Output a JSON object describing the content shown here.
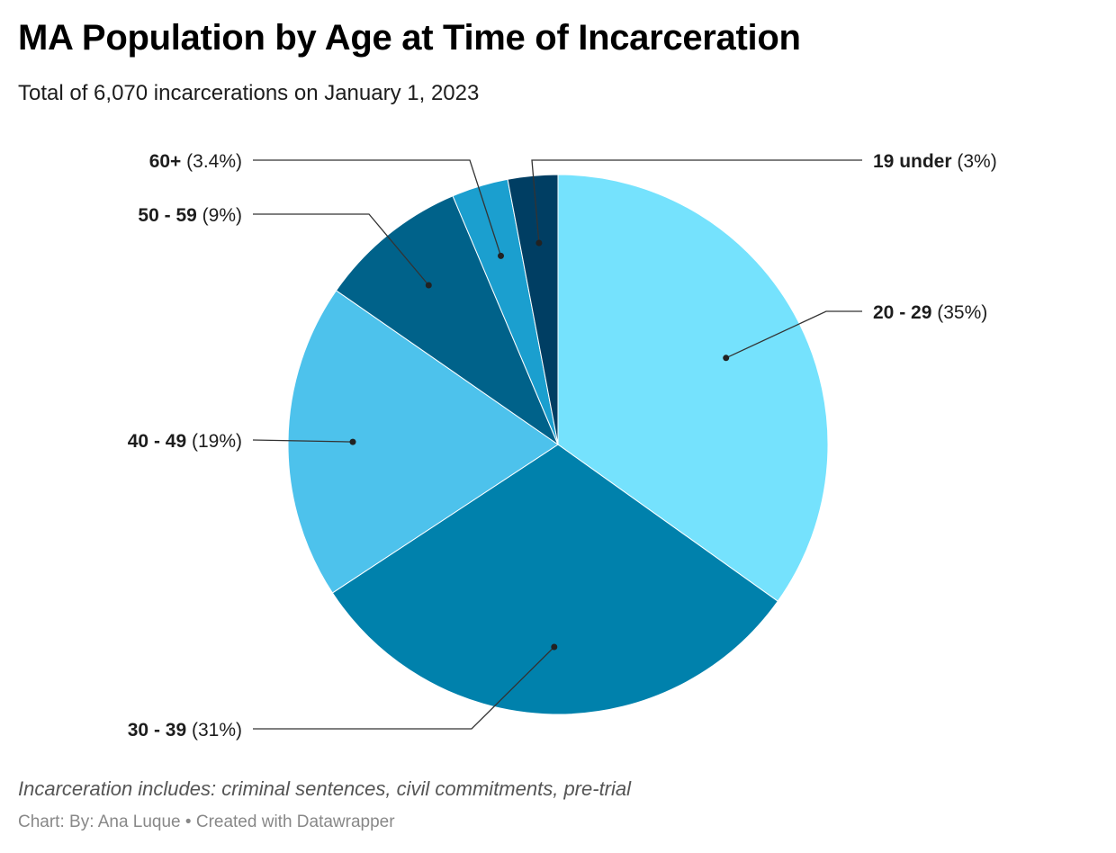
{
  "header": {
    "title": "MA Population by Age at Time of Incarceration",
    "subtitle": "Total of 6,070 incarcerations on January 1, 2023"
  },
  "footer": {
    "notes": "Incarceration includes: criminal sentences, civil commitments, pre-trial",
    "credit_label": "Chart: By: Ana Luque",
    "separator": " • ",
    "credit_tool": "Created with Datawrapper"
  },
  "chart_data": {
    "type": "pie",
    "title": "MA Population by Age at Time of Incarceration",
    "subtitle": "Total of 6,070 incarcerations on January 1, 2023",
    "start_angle": "12 o'clock",
    "direction": "clockwise",
    "slices": [
      {
        "label": "20 - 29",
        "value": 35,
        "display": "(35%)",
        "color": "#75E2FD"
      },
      {
        "label": "30 - 39",
        "value": 31,
        "display": "(31%)",
        "color": "#0081AC"
      },
      {
        "label": "40 - 49",
        "value": 19,
        "display": "(19%)",
        "color": "#4DC2EC"
      },
      {
        "label": "50 - 59",
        "value": 9,
        "display": "(9%)",
        "color": "#00628A"
      },
      {
        "label": "60+",
        "value": 3.4,
        "display": "(3.4%)",
        "color": "#1B9FCF"
      },
      {
        "label": "19 under",
        "value": 3,
        "display": "(3%)",
        "color": "#003E63"
      }
    ]
  }
}
